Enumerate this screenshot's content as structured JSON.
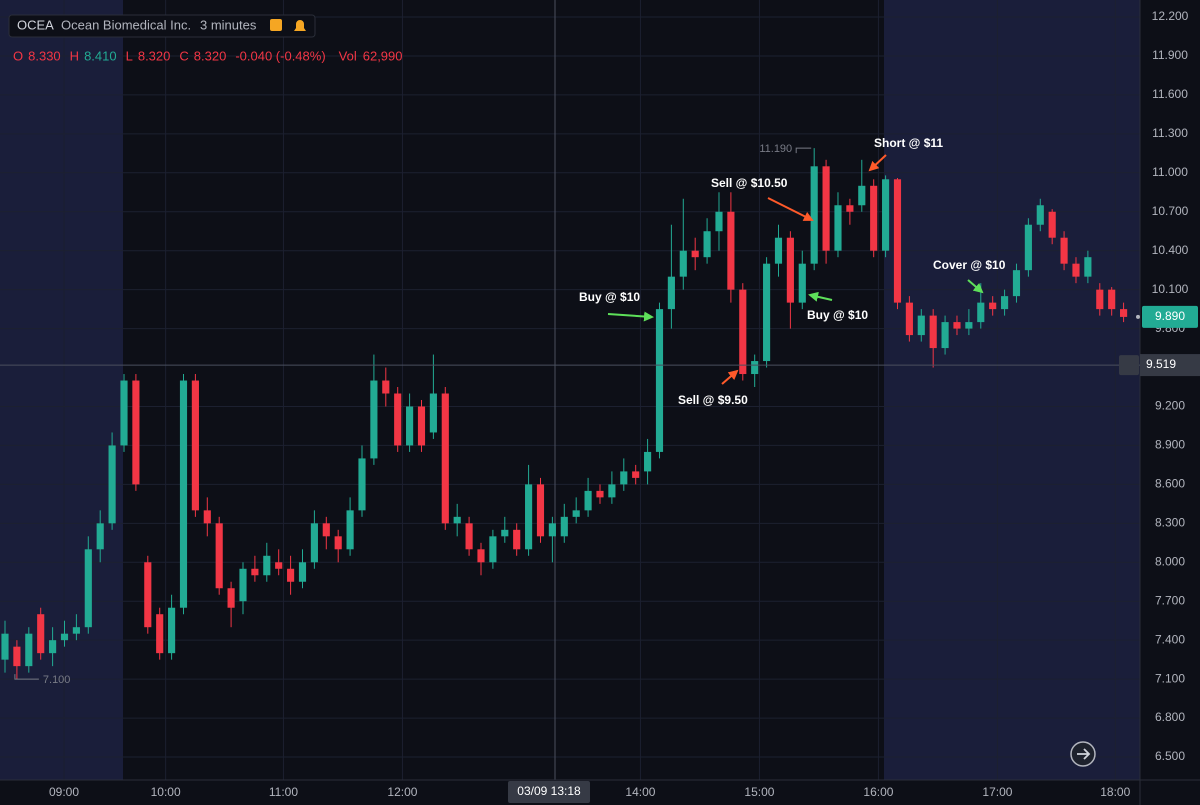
{
  "header": {
    "symbol": "OCEA",
    "name": "Ocean Biomedical Inc.",
    "interval": "3 minutes",
    "ohlc": [
      {
        "key": "O",
        "value": "8.330"
      },
      {
        "key": "H",
        "value": "8.410"
      },
      {
        "key": "L",
        "value": "8.320"
      },
      {
        "key": "C",
        "value": "8.320"
      }
    ],
    "change": "-0.040 (-0.48%)",
    "volume_key": "Vol",
    "volume": "62,990"
  },
  "chart_data": {
    "type": "candlestick",
    "up_color": "#22ab94",
    "down_color": "#f23645",
    "open": [
      7.25,
      7.35,
      7.2,
      7.6,
      7.3,
      7.4,
      7.45,
      7.5,
      8.1,
      8.3,
      8.9,
      9.4,
      8.0,
      7.6,
      7.3,
      7.65,
      9.4,
      8.4,
      8.3,
      7.8,
      7.7,
      7.95,
      7.9,
      8.0,
      7.95,
      7.85,
      8.0,
      8.3,
      8.2,
      8.1,
      8.4,
      8.8,
      9.4,
      9.3,
      8.9,
      9.2,
      9.0,
      9.3,
      8.3,
      8.3,
      8.1,
      8.0,
      8.2,
      8.25,
      8.1,
      8.6,
      8.2,
      8.2,
      8.35,
      8.4,
      8.55,
      8.5,
      8.6,
      8.7,
      8.7,
      8.85,
      9.95,
      10.2,
      10.4,
      10.35,
      10.55,
      10.7,
      10.1,
      9.45,
      9.55,
      10.3,
      10.5,
      10.0,
      10.3,
      11.05,
      10.4,
      10.75,
      10.75,
      10.9,
      10.4,
      10.95,
      10.0,
      9.75,
      9.9,
      9.65,
      9.85,
      9.8,
      9.85,
      10.0,
      9.95,
      10.05,
      10.25,
      10.6,
      10.7,
      10.5,
      10.3,
      10.2,
      10.1,
      10.1,
      9.95
    ],
    "high": [
      7.55,
      7.4,
      7.5,
      7.65,
      7.5,
      7.55,
      7.6,
      8.2,
      8.4,
      9.0,
      9.45,
      9.45,
      8.05,
      7.65,
      7.75,
      9.45,
      9.45,
      8.5,
      8.35,
      7.85,
      8.0,
      8.05,
      8.15,
      8.1,
      8.05,
      8.1,
      8.4,
      8.35,
      8.25,
      8.5,
      8.9,
      9.6,
      9.5,
      9.35,
      9.3,
      9.25,
      9.6,
      9.35,
      8.45,
      8.35,
      8.15,
      8.25,
      8.35,
      8.3,
      8.75,
      8.65,
      8.35,
      8.45,
      8.5,
      8.65,
      8.6,
      8.7,
      8.8,
      8.75,
      8.95,
      10.0,
      10.6,
      10.8,
      10.5,
      10.65,
      10.85,
      10.85,
      10.15,
      9.6,
      10.35,
      10.6,
      10.55,
      10.4,
      11.19,
      11.1,
      10.85,
      10.8,
      11.1,
      10.95,
      10.98,
      10.96,
      10.05,
      9.95,
      9.95,
      9.9,
      9.9,
      9.95,
      10.15,
      10.05,
      10.1,
      10.3,
      10.65,
      10.8,
      10.72,
      10.55,
      10.35,
      10.4,
      10.15,
      10.12,
      10.0
    ],
    "low": [
      7.15,
      7.1,
      7.15,
      7.25,
      7.2,
      7.35,
      7.4,
      7.45,
      8.0,
      8.25,
      8.85,
      8.55,
      7.45,
      7.25,
      7.25,
      7.6,
      8.35,
      8.2,
      7.75,
      7.5,
      7.6,
      7.85,
      7.85,
      7.9,
      7.75,
      7.8,
      7.95,
      8.1,
      8.0,
      8.05,
      8.35,
      8.75,
      9.2,
      8.85,
      8.85,
      8.85,
      8.95,
      8.25,
      8.2,
      8.05,
      7.9,
      7.95,
      8.15,
      8.05,
      8.05,
      8.15,
      8.0,
      8.15,
      8.3,
      8.35,
      8.45,
      8.45,
      8.55,
      8.6,
      8.6,
      8.8,
      9.8,
      10.1,
      10.25,
      10.3,
      10.4,
      10.0,
      9.4,
      9.35,
      9.5,
      10.2,
      9.8,
      9.95,
      10.25,
      10.3,
      10.35,
      10.6,
      10.7,
      10.35,
      10.35,
      9.95,
      9.7,
      9.7,
      9.5,
      9.6,
      9.75,
      9.75,
      9.8,
      9.9,
      9.9,
      10.0,
      10.2,
      10.55,
      10.45,
      10.25,
      10.15,
      10.15,
      9.9,
      9.9,
      9.85
    ],
    "close": [
      7.45,
      7.2,
      7.45,
      7.3,
      7.4,
      7.45,
      7.5,
      8.1,
      8.3,
      8.9,
      9.4,
      8.6,
      7.5,
      7.3,
      7.65,
      9.4,
      8.4,
      8.3,
      7.8,
      7.65,
      7.95,
      7.9,
      8.05,
      7.95,
      7.85,
      8.0,
      8.3,
      8.2,
      8.1,
      8.4,
      8.8,
      9.4,
      9.3,
      8.9,
      9.2,
      8.9,
      9.3,
      8.3,
      8.35,
      8.1,
      8.0,
      8.2,
      8.25,
      8.1,
      8.6,
      8.2,
      8.3,
      8.35,
      8.4,
      8.55,
      8.5,
      8.6,
      8.7,
      8.65,
      8.85,
      9.95,
      10.2,
      10.4,
      10.35,
      10.55,
      10.7,
      10.1,
      9.45,
      9.55,
      10.3,
      10.5,
      10.0,
      10.3,
      11.05,
      10.4,
      10.75,
      10.7,
      10.9,
      10.4,
      10.95,
      10.0,
      9.75,
      9.9,
      9.65,
      9.85,
      9.8,
      9.85,
      10.0,
      9.95,
      10.05,
      10.25,
      10.6,
      10.75,
      10.5,
      10.3,
      10.2,
      10.35,
      9.95,
      9.95,
      9.89
    ],
    "xlim": [
      -0.42,
      95.38
    ],
    "xticks": [
      {
        "value": 4.96,
        "label": "09:00"
      },
      {
        "value": 13.5,
        "label": "10:00"
      },
      {
        "value": 23.4,
        "label": "11:00"
      },
      {
        "value": 33.4,
        "label": "12:00"
      },
      {
        "value": 53.4,
        "label": "14:00"
      },
      {
        "value": 63.4,
        "label": "15:00"
      },
      {
        "value": 73.4,
        "label": "16:00"
      },
      {
        "value": 83.4,
        "label": "17:00"
      },
      {
        "value": 93.3,
        "label": "18:00"
      }
    ],
    "ylim": [
      6.323,
      12.331
    ],
    "yticks": [
      {
        "value": 12.2,
        "label": "12.200"
      },
      {
        "value": 11.9,
        "label": "11.900"
      },
      {
        "value": 11.6,
        "label": "11.600"
      },
      {
        "value": 11.3,
        "label": "11.300"
      },
      {
        "value": 11.0,
        "label": "11.000"
      },
      {
        "value": 10.7,
        "label": "10.700"
      },
      {
        "value": 10.4,
        "label": "10.400"
      },
      {
        "value": 10.1,
        "label": "10.100"
      },
      {
        "value": 9.8,
        "label": "9.800"
      },
      {
        "value": 9.2,
        "label": "9.200"
      },
      {
        "value": 8.9,
        "label": "8.900"
      },
      {
        "value": 8.6,
        "label": "8.600"
      },
      {
        "value": 8.3,
        "label": "8.300"
      },
      {
        "value": 8.0,
        "label": "8.000"
      },
      {
        "value": 7.7,
        "label": "7.700"
      },
      {
        "value": 7.4,
        "label": "7.400"
      },
      {
        "value": 7.1,
        "label": "7.100"
      },
      {
        "value": 6.8,
        "label": "6.800"
      },
      {
        "value": 6.5,
        "label": "6.500"
      }
    ],
    "grid": true,
    "last_price": {
      "value": 9.89,
      "label": "9.890"
    },
    "crosshair_price": {
      "value": 9.519,
      "label": "9.519"
    },
    "crosshair_time": "03/09 13:18",
    "high_marker": {
      "value": 11.19,
      "label": "11.190"
    },
    "low_marker": {
      "value": 7.1,
      "label": "7.100"
    },
    "annotations": [
      "Buy @ $10",
      "Sell @ $10.50",
      "Short @ $11",
      "Buy @ $10",
      "Sell @ $9.50",
      "Cover @ $10"
    ]
  }
}
